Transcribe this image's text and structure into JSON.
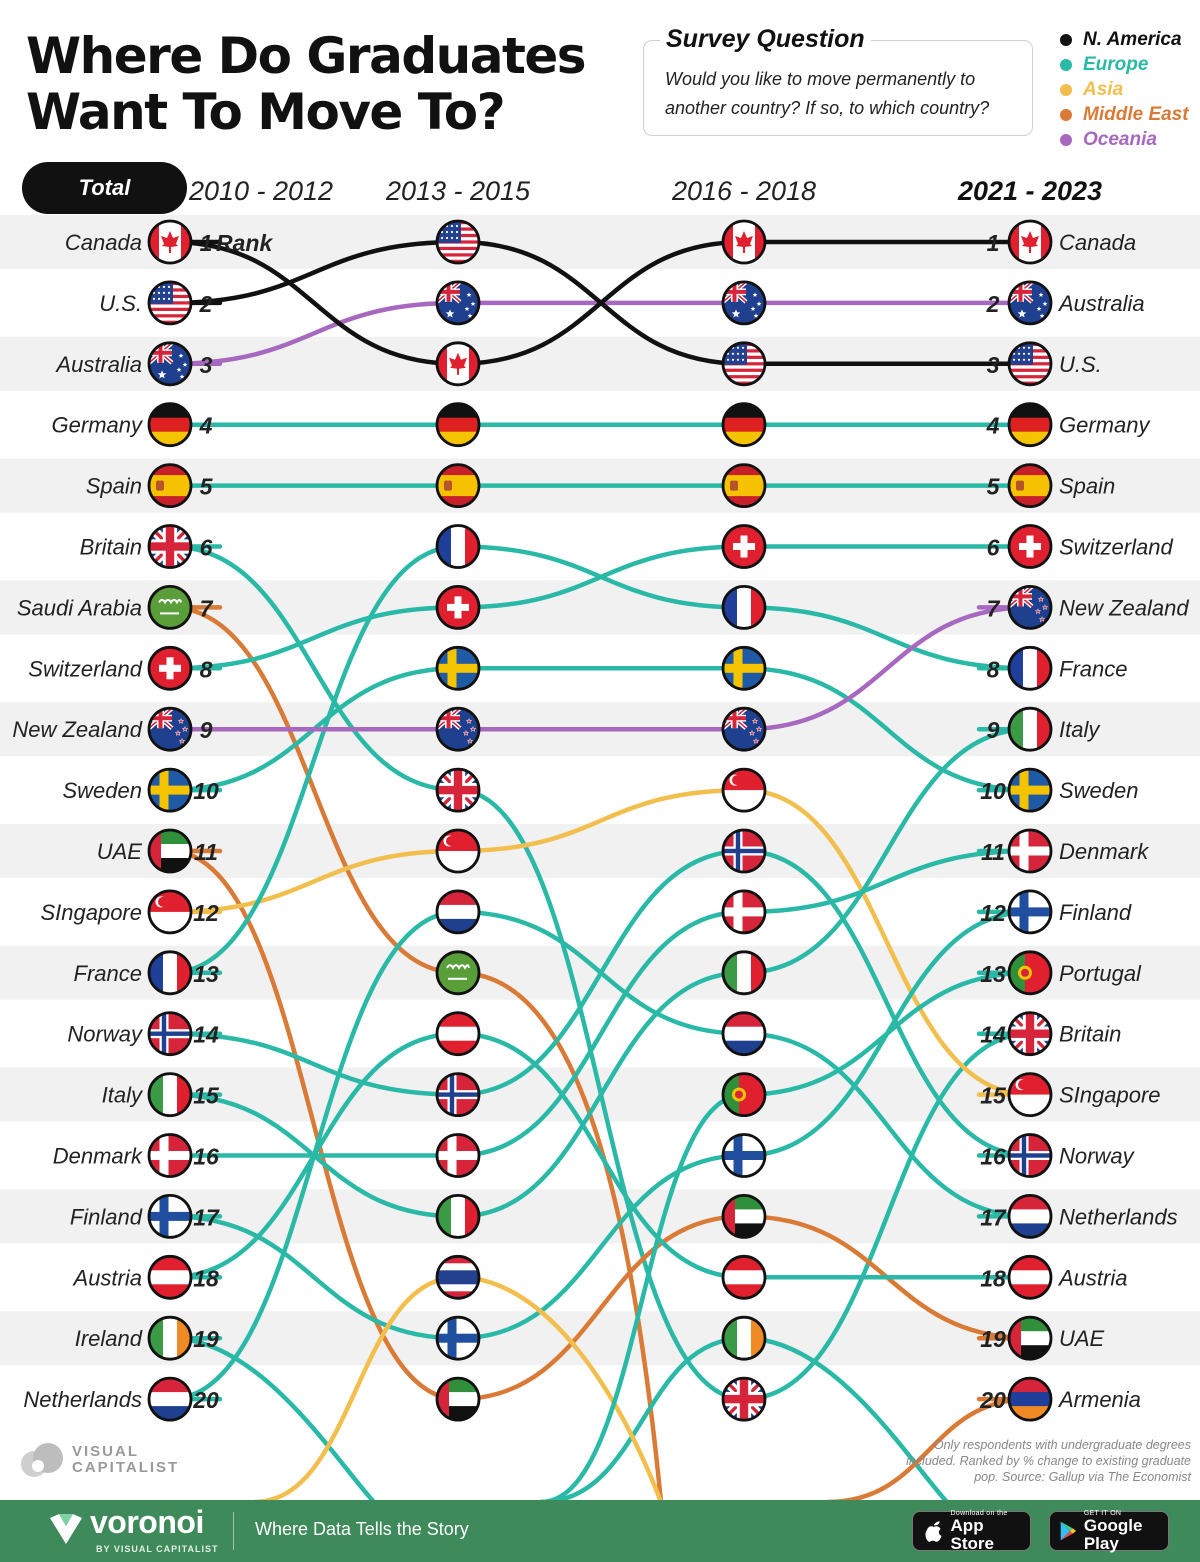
{
  "title": {
    "line1": "Where Do Graduates",
    "line2": "Want To Move To?"
  },
  "survey": {
    "label": "Survey Question",
    "text": "Would you like to move permanently to another country? If so, to which country?"
  },
  "legend": [
    {
      "label": "N. America",
      "color": "#111111"
    },
    {
      "label": "Europe",
      "color": "#2ab9a7"
    },
    {
      "label": "Asia",
      "color": "#f2bf4f"
    },
    {
      "label": "Middle East",
      "color": "#d97a36"
    },
    {
      "label": "Oceania",
      "color": "#a769bf"
    }
  ],
  "total_label": "Total",
  "rank_label": "Rank",
  "chart_data": {
    "type": "bump",
    "periods": [
      "2010 - 2012",
      "2013 - 2015",
      "2016 - 2018",
      "2021 - 2023"
    ],
    "ranks": [
      1,
      2,
      3,
      4,
      5,
      6,
      7,
      8,
      9,
      10,
      11,
      12,
      13,
      14,
      15,
      16,
      17,
      18,
      19,
      20
    ],
    "series": [
      {
        "name": "Canada",
        "region": "N. America",
        "flag": "canada",
        "ranks": [
          1,
          3,
          1,
          1
        ]
      },
      {
        "name": "U.S.",
        "region": "N. America",
        "flag": "us",
        "ranks": [
          2,
          1,
          3,
          3
        ]
      },
      {
        "name": "Australia",
        "region": "Oceania",
        "flag": "australia",
        "ranks": [
          3,
          2,
          2,
          2
        ]
      },
      {
        "name": "Germany",
        "region": "Europe",
        "flag": "germany",
        "ranks": [
          4,
          4,
          4,
          4
        ]
      },
      {
        "name": "Spain",
        "region": "Europe",
        "flag": "spain",
        "ranks": [
          5,
          5,
          5,
          5
        ]
      },
      {
        "name": "Britain",
        "region": "Europe",
        "flag": "britain",
        "ranks": [
          6,
          10,
          20,
          14
        ]
      },
      {
        "name": "Saudi Arabia",
        "region": "Middle East",
        "flag": "saudi",
        "ranks": [
          7,
          13,
          null,
          null
        ]
      },
      {
        "name": "Switzerland",
        "region": "Europe",
        "flag": "switzerland",
        "ranks": [
          8,
          7,
          6,
          6
        ]
      },
      {
        "name": "New Zealand",
        "region": "Oceania",
        "flag": "newzealand",
        "ranks": [
          9,
          9,
          9,
          7
        ]
      },
      {
        "name": "Sweden",
        "region": "Europe",
        "flag": "sweden",
        "ranks": [
          10,
          8,
          8,
          10
        ]
      },
      {
        "name": "UAE",
        "region": "Middle East",
        "flag": "uae",
        "ranks": [
          11,
          20,
          17,
          19
        ]
      },
      {
        "name": "SIngapore",
        "region": "Asia",
        "flag": "singapore",
        "ranks": [
          12,
          11,
          10,
          15
        ]
      },
      {
        "name": "France",
        "region": "Europe",
        "flag": "france",
        "ranks": [
          13,
          6,
          7,
          8
        ]
      },
      {
        "name": "Norway",
        "region": "Europe",
        "flag": "norway",
        "ranks": [
          14,
          15,
          11,
          16
        ]
      },
      {
        "name": "Italy",
        "region": "Europe",
        "flag": "italy",
        "ranks": [
          15,
          17,
          13,
          9
        ]
      },
      {
        "name": "Denmark",
        "region": "Europe",
        "flag": "denmark",
        "ranks": [
          16,
          16,
          12,
          11
        ]
      },
      {
        "name": "Finland",
        "region": "Europe",
        "flag": "finland",
        "ranks": [
          17,
          19,
          16,
          12
        ]
      },
      {
        "name": "Austria",
        "region": "Europe",
        "flag": "austria",
        "ranks": [
          18,
          14,
          18,
          18
        ]
      },
      {
        "name": "Ireland",
        "region": "Europe",
        "flag": "ireland",
        "ranks": [
          19,
          null,
          19,
          null
        ]
      },
      {
        "name": "Netherlands",
        "region": "Europe",
        "flag": "netherlands",
        "ranks": [
          20,
          12,
          14,
          17
        ]
      },
      {
        "name": "Thailand",
        "region": "Asia",
        "flag": "thailand",
        "ranks": [
          null,
          18,
          null,
          null
        ]
      },
      {
        "name": "Portugal",
        "region": "Europe",
        "flag": "portugal",
        "ranks": [
          null,
          null,
          15,
          13
        ]
      },
      {
        "name": "Armenia",
        "region": "Middle East",
        "flag": "armenia",
        "ranks": [
          null,
          null,
          null,
          20
        ]
      }
    ]
  },
  "note": "Only respondents with undergraduate degrees included. Ranked by % change to existing graduate pop. Source: Gallup via The Economist",
  "branding": {
    "vc_line1": "VISUAL",
    "vc_line2": "CAPITALIST",
    "voronoi": "voronoi",
    "voronoi_by": "BY VISUAL CAPITALIST",
    "tagline": "Where Data Tells the Story",
    "appstore_small": "Download on the",
    "appstore_big": "App Store",
    "googleplay_small": "GET IT ON",
    "googleplay_big": "Google Play"
  }
}
